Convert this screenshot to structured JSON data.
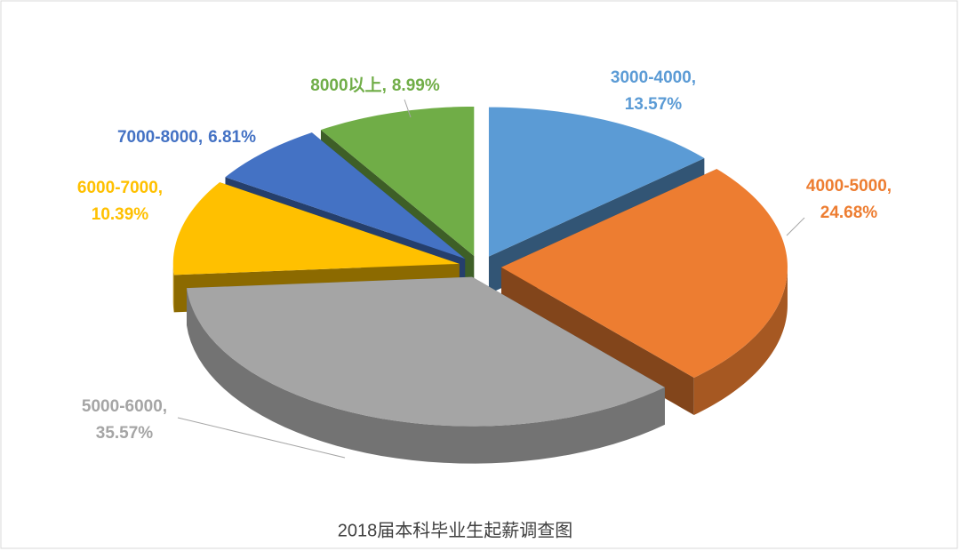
{
  "chart_data": {
    "type": "pie3d",
    "title": "2018届本科毕业生起薪调查图",
    "categories": [
      "3000-4000",
      "4000-5000",
      "5000-6000",
      "6000-7000",
      "7000-8000",
      "8000以上"
    ],
    "values": [
      13.57,
      24.68,
      35.57,
      10.39,
      6.81,
      8.99
    ],
    "value_labels": [
      "13.57%",
      "24.68%",
      "35.57%",
      "10.39%",
      "6.81%",
      "8.99%"
    ],
    "label_separator": ",",
    "colors": [
      "#5b9bd5",
      "#ed7d31",
      "#a5a5a5",
      "#ffc000",
      "#4472c4",
      "#70ad47"
    ]
  }
}
